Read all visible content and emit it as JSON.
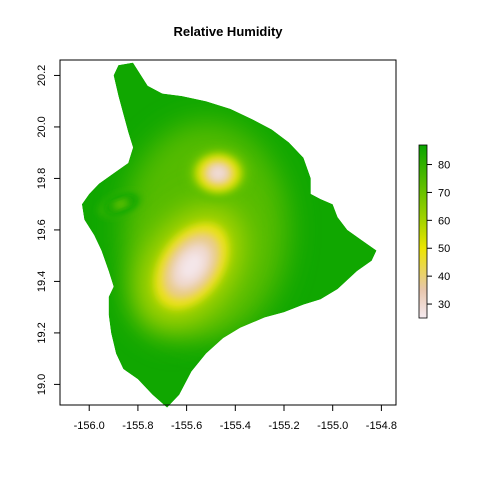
{
  "chart_data": {
    "type": "heatmap",
    "title": "Relative Humidity",
    "xlabel": "",
    "ylabel": "",
    "xlim": [
      -156.12,
      -154.74
    ],
    "ylim": [
      18.92,
      20.26
    ],
    "x_ticks": [
      {
        "value": -156.0,
        "label": "-156.0"
      },
      {
        "value": -155.8,
        "label": "-155.8"
      },
      {
        "value": -155.6,
        "label": "-155.6"
      },
      {
        "value": -155.4,
        "label": "-155.4"
      },
      {
        "value": -155.2,
        "label": "-155.2"
      },
      {
        "value": -155.0,
        "label": "-155.0"
      },
      {
        "value": -154.8,
        "label": "-154.8"
      }
    ],
    "y_ticks": [
      {
        "value": 19.0,
        "label": "19.0"
      },
      {
        "value": 19.2,
        "label": "19.2"
      },
      {
        "value": 19.4,
        "label": "19.4"
      },
      {
        "value": 19.6,
        "label": "19.6"
      },
      {
        "value": 19.8,
        "label": "19.8"
      },
      {
        "value": 20.0,
        "label": "20.0"
      },
      {
        "value": 20.2,
        "label": "20.2"
      }
    ],
    "legend": {
      "placement": "right",
      "range": [
        25,
        87
      ],
      "ticks": [
        {
          "value": 30,
          "label": "30"
        },
        {
          "value": 40,
          "label": "40"
        },
        {
          "value": 50,
          "label": "50"
        },
        {
          "value": 60,
          "label": "60"
        },
        {
          "value": 70,
          "label": "70"
        },
        {
          "value": 80,
          "label": "80"
        }
      ],
      "color_stops": [
        {
          "value": 25,
          "color": "#f5eaf0"
        },
        {
          "value": 35,
          "color": "#e8c6ad"
        },
        {
          "value": 50,
          "color": "#ece500"
        },
        {
          "value": 60,
          "color": "#a3d300"
        },
        {
          "value": 87,
          "color": "#0aa500"
        }
      ]
    },
    "island_outline": [
      [
        -155.88,
        20.24
      ],
      [
        -155.82,
        20.25
      ],
      [
        -155.76,
        20.16
      ],
      [
        -155.7,
        20.13
      ],
      [
        -155.62,
        20.12
      ],
      [
        -155.52,
        20.1
      ],
      [
        -155.42,
        20.07
      ],
      [
        -155.33,
        20.03
      ],
      [
        -155.25,
        19.99
      ],
      [
        -155.18,
        19.94
      ],
      [
        -155.12,
        19.88
      ],
      [
        -155.09,
        19.8
      ],
      [
        -155.09,
        19.74
      ],
      [
        -155.05,
        19.72
      ],
      [
        -155.0,
        19.7
      ],
      [
        -154.98,
        19.65
      ],
      [
        -154.94,
        19.6
      ],
      [
        -154.88,
        19.56
      ],
      [
        -154.82,
        19.52
      ],
      [
        -154.84,
        19.48
      ],
      [
        -154.9,
        19.44
      ],
      [
        -154.98,
        19.37
      ],
      [
        -155.05,
        19.33
      ],
      [
        -155.12,
        19.31
      ],
      [
        -155.2,
        19.28
      ],
      [
        -155.28,
        19.26
      ],
      [
        -155.38,
        19.22
      ],
      [
        -155.45,
        19.18
      ],
      [
        -155.52,
        19.12
      ],
      [
        -155.58,
        19.05
      ],
      [
        -155.63,
        18.96
      ],
      [
        -155.68,
        18.91
      ],
      [
        -155.74,
        18.96
      ],
      [
        -155.8,
        19.02
      ],
      [
        -155.86,
        19.06
      ],
      [
        -155.89,
        19.12
      ],
      [
        -155.91,
        19.2
      ],
      [
        -155.92,
        19.27
      ],
      [
        -155.92,
        19.34
      ],
      [
        -155.9,
        19.38
      ],
      [
        -155.92,
        19.44
      ],
      [
        -155.95,
        19.52
      ],
      [
        -155.98,
        19.58
      ],
      [
        -156.02,
        19.64
      ],
      [
        -156.03,
        19.7
      ],
      [
        -156.0,
        19.74
      ],
      [
        -155.96,
        19.78
      ],
      [
        -155.9,
        19.82
      ],
      [
        -155.84,
        19.86
      ],
      [
        -155.82,
        19.92
      ],
      [
        -155.84,
        19.98
      ],
      [
        -155.86,
        20.05
      ],
      [
        -155.88,
        20.12
      ],
      [
        -155.9,
        20.2
      ]
    ],
    "dry_centers": [
      {
        "lon": -155.58,
        "lat": 19.46,
        "value": 26,
        "radius_lon": 0.11,
        "radius_lat": 0.16,
        "rotation_deg": 35
      },
      {
        "lon": -155.47,
        "lat": 19.82,
        "value": 28,
        "radius_lon": 0.07,
        "radius_lat": 0.055,
        "rotation_deg": 0
      },
      {
        "lon": -155.87,
        "lat": 19.7,
        "value": 68,
        "radius_lon": 0.05,
        "radius_lat": 0.02,
        "rotation_deg": -20
      }
    ],
    "background_value": 86
  }
}
